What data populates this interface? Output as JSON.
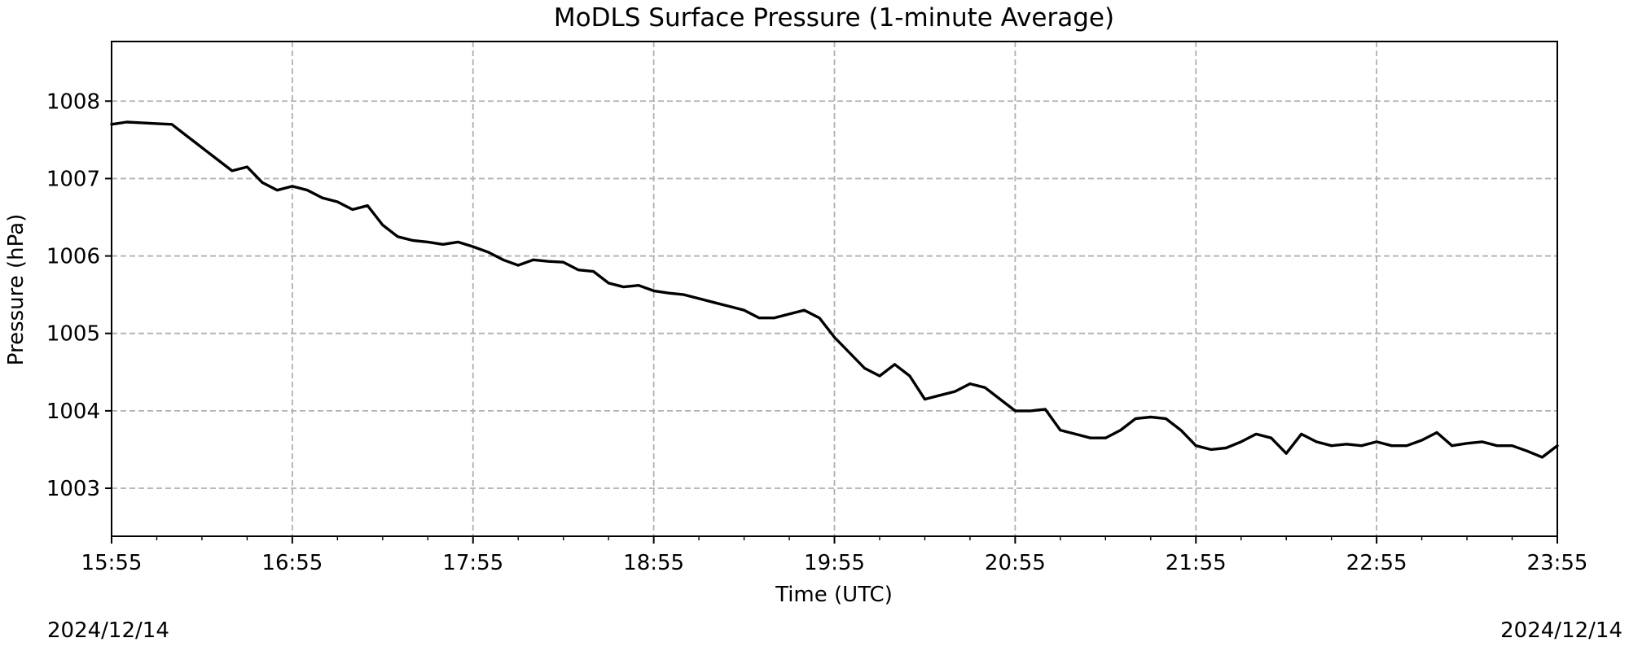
{
  "chart_data": {
    "type": "line",
    "title": "MoDLS Surface Pressure (1-minute Average)",
    "xlabel": "Time (UTC)",
    "ylabel": "Pressure (hPa)",
    "x_ticks": [
      "15:55",
      "16:55",
      "17:55",
      "18:55",
      "19:55",
      "20:55",
      "21:55",
      "22:55",
      "23:55"
    ],
    "y_ticks": [
      1003,
      1004,
      1005,
      1006,
      1007,
      1008
    ],
    "xlim": [
      "15:55",
      "23:55"
    ],
    "ylim": [
      1002.38,
      1008.77
    ],
    "grid": true,
    "line_color": "#000000",
    "series": [
      {
        "x": [
          "15:55",
          "16:00",
          "16:05",
          "16:10",
          "16:15",
          "16:20",
          "16:25",
          "16:30",
          "16:35",
          "16:40",
          "16:45",
          "16:50",
          "16:55",
          "17:00",
          "17:05",
          "17:10",
          "17:15",
          "17:20",
          "17:25",
          "17:30",
          "17:35",
          "17:40",
          "17:45",
          "17:50",
          "17:55",
          "18:00",
          "18:05",
          "18:10",
          "18:15",
          "18:20",
          "18:25",
          "18:30",
          "18:35",
          "18:40",
          "18:45",
          "18:50",
          "18:55",
          "19:00",
          "19:05",
          "19:10",
          "19:15",
          "19:20",
          "19:25",
          "19:30",
          "19:35",
          "19:40",
          "19:45",
          "19:50",
          "19:55",
          "20:00",
          "20:05",
          "20:10",
          "20:15",
          "20:20",
          "20:25",
          "20:30",
          "20:35",
          "20:40",
          "20:45",
          "20:50",
          "20:55",
          "21:00",
          "21:05",
          "21:10",
          "21:15",
          "21:20",
          "21:25",
          "21:30",
          "21:35",
          "21:40",
          "21:45",
          "21:50",
          "21:55",
          "22:00",
          "22:05",
          "22:10",
          "22:15",
          "22:20",
          "22:25",
          "22:30",
          "22:35",
          "22:40",
          "22:45",
          "22:50",
          "22:55",
          "23:00",
          "23:05",
          "23:10",
          "23:15",
          "23:20",
          "23:25",
          "23:30",
          "23:35",
          "23:40",
          "23:45",
          "23:50",
          "23:55"
        ],
        "values": [
          1007.7,
          1007.73,
          1007.72,
          1007.71,
          1007.7,
          1007.55,
          1007.4,
          1007.25,
          1007.1,
          1007.15,
          1006.95,
          1006.85,
          1006.9,
          1006.85,
          1006.75,
          1006.7,
          1006.6,
          1006.65,
          1006.4,
          1006.25,
          1006.2,
          1006.18,
          1006.15,
          1006.18,
          1006.12,
          1006.05,
          1005.95,
          1005.88,
          1005.95,
          1005.93,
          1005.92,
          1005.82,
          1005.8,
          1005.65,
          1005.6,
          1005.62,
          1005.55,
          1005.52,
          1005.5,
          1005.45,
          1005.4,
          1005.35,
          1005.3,
          1005.2,
          1005.2,
          1005.25,
          1005.3,
          1005.2,
          1004.95,
          1004.75,
          1004.55,
          1004.45,
          1004.6,
          1004.45,
          1004.15,
          1004.2,
          1004.25,
          1004.35,
          1004.3,
          1004.15,
          1004.0,
          1004.0,
          1004.02,
          1003.75,
          1003.7,
          1003.65,
          1003.65,
          1003.75,
          1003.9,
          1003.92,
          1003.9,
          1003.75,
          1003.55,
          1003.5,
          1003.52,
          1003.6,
          1003.7,
          1003.65,
          1003.45,
          1003.7,
          1003.6,
          1003.55,
          1003.57,
          1003.55,
          1003.6,
          1003.55,
          1003.55,
          1003.62,
          1003.72,
          1003.55,
          1003.58,
          1003.6,
          1003.55,
          1003.55,
          1003.48,
          1003.4,
          1003.55
        ]
      }
    ]
  },
  "dates": {
    "left": "2024/12/14",
    "right": "2024/12/14"
  }
}
